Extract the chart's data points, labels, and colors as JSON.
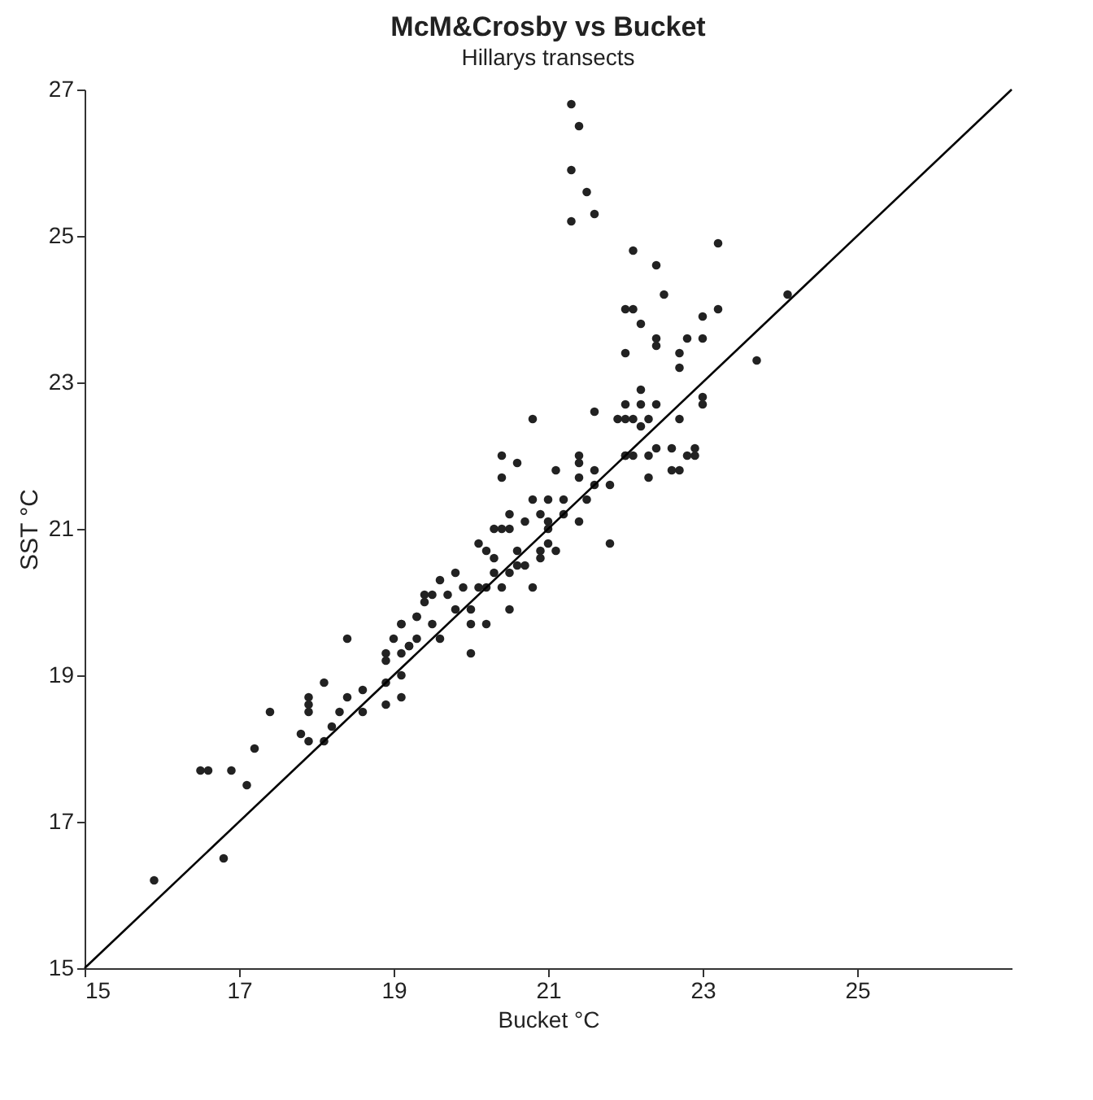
{
  "chart_data": {
    "type": "scatter",
    "title": "McM&Crosby vs Bucket",
    "subtitle": "Hillarys transects",
    "xlabel": "Bucket °C",
    "ylabel": "SST °C",
    "xlim": [
      15,
      27
    ],
    "ylim": [
      15,
      27
    ],
    "xticks": [
      15,
      17,
      19,
      21,
      23,
      25
    ],
    "yticks": [
      15,
      17,
      19,
      21,
      23,
      25,
      27
    ],
    "grid": false,
    "series": [
      {
        "marker": "circle",
        "color": "#222222",
        "x": [
          15.9,
          16.8,
          16.5,
          16.6,
          16.9,
          17.1,
          17.2,
          17.4,
          18.1,
          18.4,
          17.9,
          17.9,
          17.9,
          17.8,
          17.9,
          18.1,
          18.2,
          18.3,
          18.4,
          18.6,
          18.6,
          18.9,
          18.9,
          19.1,
          19.1,
          18.9,
          19.1,
          19.1,
          19.3,
          19.4,
          19.2,
          19.3,
          20.8,
          21.6,
          20.4,
          20.6,
          20.4,
          21.1,
          21.4,
          21.4,
          21.6,
          21.4,
          21.6,
          21.8,
          21.5,
          22.0,
          22.0,
          21.8,
          21.2,
          21.2,
          21.4,
          21.0,
          20.8,
          20.9,
          20.7,
          20.5,
          20.5,
          20.3,
          20.4,
          21.0,
          21.0,
          21.0,
          20.9,
          21.1,
          20.1,
          20.2,
          20.3,
          20.6,
          20.9,
          20.7,
          20.6,
          20.5,
          20.3,
          20.4,
          20.2,
          20.1,
          19.9,
          19.8,
          20.8,
          20.5,
          20.2,
          20.0,
          20.0,
          20.0,
          19.6,
          19.5,
          19.7,
          19.4,
          19.3,
          19.5,
          19.6,
          19.8,
          19.1,
          19.0,
          19.2,
          18.9,
          21.3,
          21.4,
          21.3,
          21.5,
          21.6,
          21.3,
          22.1,
          23.2,
          22.4,
          22.5,
          22.0,
          22.1,
          23.2,
          22.2,
          22.4,
          22.4,
          22.8,
          23.0,
          23.0,
          22.7,
          22.7,
          22.0,
          24.1,
          23.7,
          22.2,
          22.0,
          22.2,
          22.4,
          21.9,
          22.1,
          22.3,
          22.7,
          23.0,
          23.0,
          22.2,
          22.4,
          22.6,
          22.9,
          22.9,
          22.0,
          22.1,
          22.3,
          22.6,
          22.3,
          22.7,
          22.8
        ],
        "values": [
          16.2,
          16.5,
          17.7,
          17.7,
          17.7,
          17.5,
          18.0,
          18.5,
          18.9,
          19.5,
          18.7,
          18.6,
          18.5,
          18.2,
          18.1,
          18.1,
          18.3,
          18.5,
          18.7,
          18.8,
          18.5,
          18.9,
          18.6,
          19.0,
          18.7,
          19.2,
          19.3,
          19.7,
          19.8,
          20.1,
          19.4,
          19.5,
          22.5,
          22.6,
          22.0,
          21.9,
          21.7,
          21.8,
          22.0,
          21.9,
          21.8,
          21.7,
          21.6,
          21.6,
          21.4,
          22.0,
          22.5,
          20.8,
          21.4,
          21.2,
          21.1,
          21.4,
          21.4,
          21.2,
          21.1,
          21.2,
          21.0,
          21.0,
          21.0,
          21.1,
          21.0,
          20.8,
          20.7,
          20.7,
          20.8,
          20.7,
          20.6,
          20.7,
          20.6,
          20.5,
          20.5,
          20.4,
          20.4,
          20.2,
          20.2,
          20.2,
          20.2,
          20.4,
          20.2,
          19.9,
          19.7,
          19.9,
          19.7,
          19.3,
          20.3,
          20.1,
          20.1,
          20.0,
          19.8,
          19.7,
          19.5,
          19.9,
          19.7,
          19.5,
          19.4,
          19.3,
          26.8,
          26.5,
          25.9,
          25.6,
          25.3,
          25.2,
          24.8,
          24.9,
          24.6,
          24.2,
          24.0,
          24.0,
          24.0,
          23.8,
          23.6,
          23.5,
          23.6,
          23.9,
          23.6,
          23.4,
          23.2,
          23.4,
          24.2,
          23.3,
          22.9,
          22.7,
          22.7,
          22.7,
          22.5,
          22.5,
          22.5,
          22.5,
          22.8,
          22.7,
          22.4,
          22.1,
          22.1,
          22.1,
          22.0,
          22.0,
          22.0,
          22.0,
          21.8,
          21.7,
          21.8,
          22.0
        ]
      },
      {
        "type": "line",
        "marker": "none",
        "color": "#000000",
        "x": [
          15,
          27
        ],
        "values": [
          15,
          27
        ]
      }
    ]
  }
}
